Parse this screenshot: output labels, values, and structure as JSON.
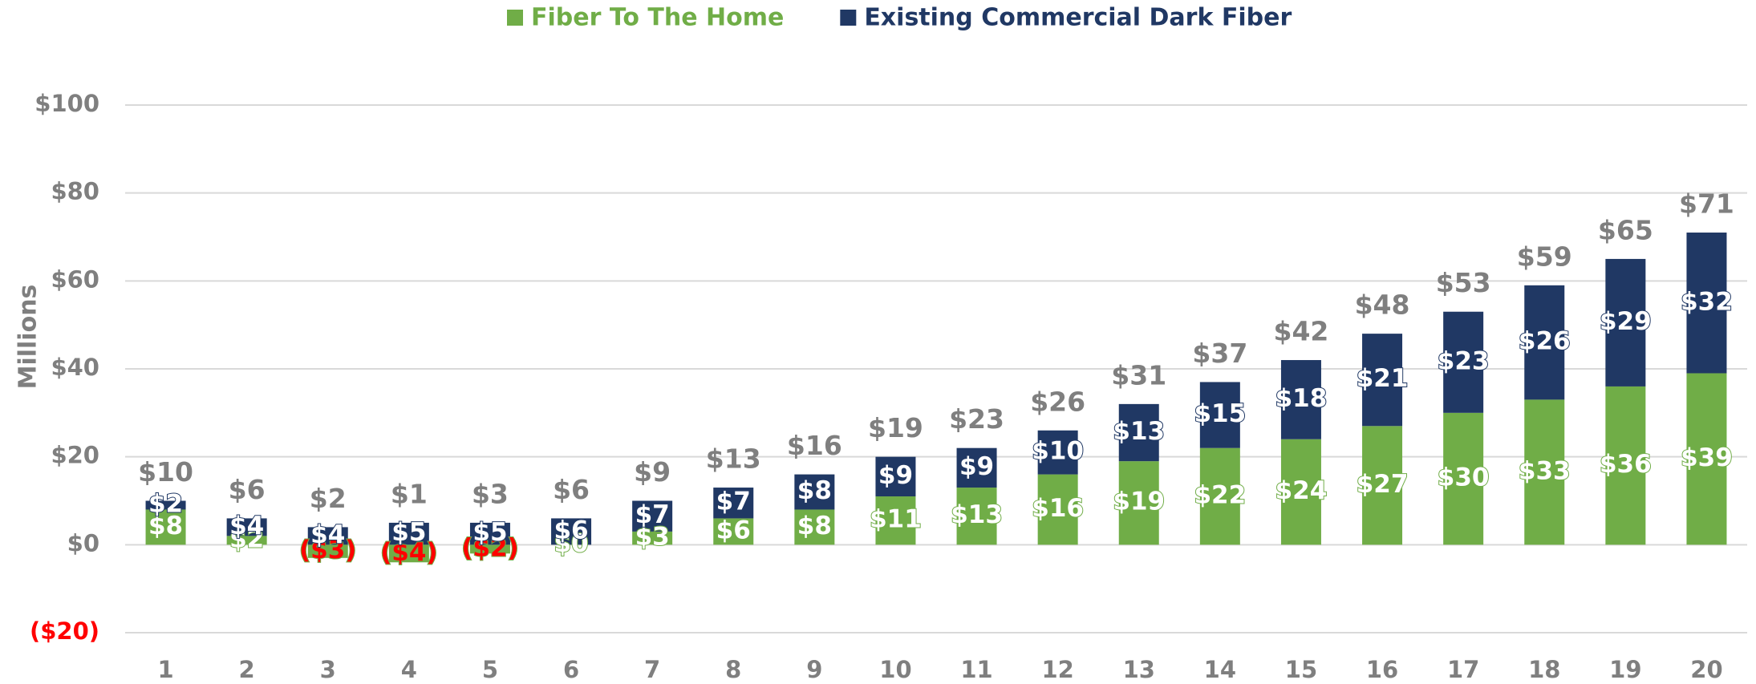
{
  "chart_data": {
    "type": "stacked_bar",
    "y_label": "Millions",
    "categories": [
      "1",
      "2",
      "3",
      "4",
      "5",
      "6",
      "7",
      "8",
      "9",
      "10",
      "11",
      "12",
      "13",
      "14",
      "15",
      "16",
      "17",
      "18",
      "19",
      "20"
    ],
    "series": [
      {
        "name": "Fiber To The Home",
        "color": "#70ad47",
        "values": [
          8,
          2,
          -3,
          -4,
          -2,
          0,
          3,
          6,
          8,
          11,
          13,
          16,
          19,
          22,
          24,
          27,
          30,
          33,
          36,
          39
        ],
        "value_labels": [
          "$8",
          "$2",
          "($3)",
          "($4)",
          "($2)",
          "$0",
          "$3",
          "$6",
          "$8",
          "$11",
          "$13",
          "$16",
          "$19",
          "$22",
          "$24",
          "$27",
          "$30",
          "$33",
          "$36",
          "$39"
        ]
      },
      {
        "name": "Existing Commercial Dark Fiber",
        "color": "#203864",
        "values": [
          2,
          4,
          4,
          5,
          5,
          6,
          7,
          7,
          8,
          9,
          9,
          10,
          13,
          15,
          18,
          21,
          23,
          26,
          29,
          32
        ],
        "value_labels": [
          "$2",
          "$4",
          "$4",
          "$5",
          "$5",
          "$6",
          "$7",
          "$7",
          "$8",
          "$9",
          "$9",
          "$10",
          "$13",
          "$15",
          "$18",
          "$21",
          "$23",
          "$26",
          "$29",
          "$32"
        ]
      }
    ],
    "totals": [
      10,
      6,
      2,
      1,
      3,
      6,
      9,
      13,
      16,
      19,
      23,
      26,
      31,
      37,
      42,
      48,
      53,
      59,
      65,
      71
    ],
    "total_labels": [
      "$10",
      "$6",
      "$2",
      "$1",
      "$3",
      "$6",
      "$9",
      "$13",
      "$16",
      "$19",
      "$23",
      "$26",
      "$31",
      "$37",
      "$42",
      "$48",
      "$53",
      "$59",
      "$65",
      "$71"
    ],
    "ylim": [
      -20,
      100
    ],
    "yticks": [
      {
        "value": -20,
        "label": "($20)"
      },
      {
        "value": 0,
        "label": "$0"
      },
      {
        "value": 20,
        "label": "$20"
      },
      {
        "value": 40,
        "label": "$40"
      },
      {
        "value": 60,
        "label": "$60"
      },
      {
        "value": 80,
        "label": "$80"
      },
      {
        "value": 100,
        "label": "$100"
      }
    ],
    "grid": true,
    "legend": "top",
    "tick_color": "#7f7f7f",
    "negative_color": "#ff0000"
  }
}
